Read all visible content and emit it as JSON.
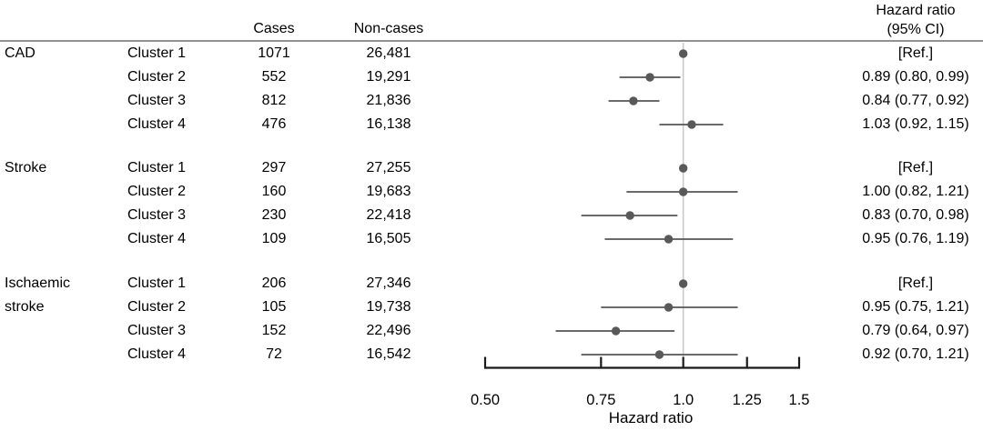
{
  "figure": {
    "columns": {
      "cases": "Cases",
      "non_cases": "Non-cases",
      "hr_header_line1": "Hazard ratio",
      "hr_header_line2": "(95% CI)"
    }
  },
  "chart_data": {
    "type": "forest",
    "xlabel": "Hazard ratio",
    "xscale": "log",
    "xlim": [
      0.5,
      1.5
    ],
    "xticks": [
      0.5,
      0.75,
      1.0,
      1.25,
      1.5
    ],
    "xtick_labels": [
      "0.50",
      "0.75",
      "1.0",
      "1.25",
      "1.5"
    ],
    "ref_line_x": 1.0,
    "groups": [
      {
        "outcome": "CAD",
        "outcome_lines": [
          "CAD"
        ],
        "rows": [
          {
            "cluster": "Cluster 1",
            "cases": "1071",
            "non_cases": "26,481",
            "hr": 1.0,
            "ci_low": null,
            "ci_high": null,
            "hr_text": "[Ref.]"
          },
          {
            "cluster": "Cluster 2",
            "cases": "552",
            "non_cases": "19,291",
            "hr": 0.89,
            "ci_low": 0.8,
            "ci_high": 0.99,
            "hr_text": "0.89 (0.80, 0.99)"
          },
          {
            "cluster": "Cluster 3",
            "cases": "812",
            "non_cases": "21,836",
            "hr": 0.84,
            "ci_low": 0.77,
            "ci_high": 0.92,
            "hr_text": "0.84 (0.77, 0.92)"
          },
          {
            "cluster": "Cluster 4",
            "cases": "476",
            "non_cases": "16,138",
            "hr": 1.03,
            "ci_low": 0.92,
            "ci_high": 1.15,
            "hr_text": "1.03 (0.92, 1.15)"
          }
        ]
      },
      {
        "outcome": "Stroke",
        "outcome_lines": [
          "Stroke"
        ],
        "rows": [
          {
            "cluster": "Cluster 1",
            "cases": "297",
            "non_cases": "27,255",
            "hr": 1.0,
            "ci_low": null,
            "ci_high": null,
            "hr_text": "[Ref.]"
          },
          {
            "cluster": "Cluster 2",
            "cases": "160",
            "non_cases": "19,683",
            "hr": 1.0,
            "ci_low": 0.82,
            "ci_high": 1.21,
            "hr_text": "1.00 (0.82, 1.21)"
          },
          {
            "cluster": "Cluster 3",
            "cases": "230",
            "non_cases": "22,418",
            "hr": 0.83,
            "ci_low": 0.7,
            "ci_high": 0.98,
            "hr_text": "0.83 (0.70, 0.98)"
          },
          {
            "cluster": "Cluster 4",
            "cases": "109",
            "non_cases": "16,505",
            "hr": 0.95,
            "ci_low": 0.76,
            "ci_high": 1.19,
            "hr_text": "0.95 (0.76, 1.19)"
          }
        ]
      },
      {
        "outcome": "Ischaemic stroke",
        "outcome_lines": [
          "Ischaemic",
          "stroke"
        ],
        "rows": [
          {
            "cluster": "Cluster 1",
            "cases": "206",
            "non_cases": "27,346",
            "hr": 1.0,
            "ci_low": null,
            "ci_high": null,
            "hr_text": "[Ref.]"
          },
          {
            "cluster": "Cluster 2",
            "cases": "105",
            "non_cases": "19,738",
            "hr": 0.95,
            "ci_low": 0.75,
            "ci_high": 1.21,
            "hr_text": "0.95 (0.75, 1.21)"
          },
          {
            "cluster": "Cluster 3",
            "cases": "152",
            "non_cases": "22,496",
            "hr": 0.79,
            "ci_low": 0.64,
            "ci_high": 0.97,
            "hr_text": "0.79 (0.64, 0.97)"
          },
          {
            "cluster": "Cluster 4",
            "cases": "72",
            "non_cases": "16,542",
            "hr": 0.92,
            "ci_low": 0.7,
            "ci_high": 1.21,
            "hr_text": "0.92 (0.70, 1.21)"
          }
        ]
      }
    ]
  },
  "colors": {
    "marker": "#595959",
    "ci_line": "#555555",
    "ref_line": "#c9c9c9",
    "axis": "#1a1a1a",
    "header_rule": "#929292",
    "text": "#000000",
    "background": "#ffffff"
  }
}
